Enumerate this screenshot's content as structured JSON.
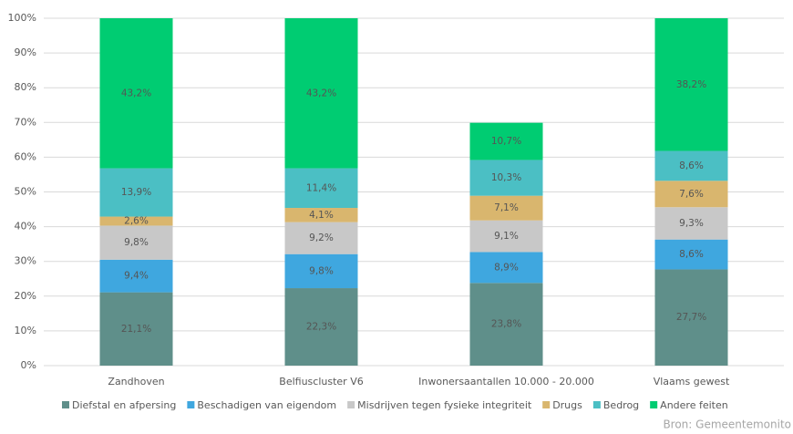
{
  "chart_data": {
    "type": "bar",
    "stacked": true,
    "categories": [
      "Zandhoven",
      "Belfiuscluster V6",
      "Inwonersaantallen 10.000 - 20.000",
      "Vlaams gewest"
    ],
    "series": [
      {
        "name": "Diefstal en afpersing",
        "color": "#5f8f8a",
        "values": [
          21.1,
          22.3,
          23.8,
          27.7
        ],
        "value_labels": [
          "21,1%",
          "22,3%",
          "23,8%",
          "27,7%"
        ]
      },
      {
        "name": "Beschadigen van eigendom",
        "color": "#3fa7df",
        "values": [
          9.4,
          9.8,
          8.9,
          8.6
        ],
        "value_labels": [
          "9,4%",
          "9,8%",
          "8,9%",
          "8,6%"
        ]
      },
      {
        "name": "Misdrijven tegen fysieke integriteit",
        "color": "#c8c8c8",
        "values": [
          9.8,
          9.2,
          9.1,
          9.3
        ],
        "value_labels": [
          "9,8%",
          "9,2%",
          "9,1%",
          "9,3%"
        ]
      },
      {
        "name": "Drugs",
        "color": "#d9b66e",
        "values": [
          2.6,
          4.1,
          7.1,
          7.6
        ],
        "value_labels": [
          "2,6%",
          "4,1%",
          "7,1%",
          "7,6%"
        ]
      },
      {
        "name": "Bedrog",
        "color": "#4bbfc4",
        "values": [
          13.9,
          11.4,
          10.3,
          8.6
        ],
        "value_labels": [
          "13,9%",
          "11,4%",
          "10,3%",
          "8,6%"
        ]
      },
      {
        "name": "Andere feiten",
        "color": "#00cc72",
        "values": [
          43.2,
          43.2,
          10.7,
          38.2
        ],
        "value_labels": [
          "43,2%",
          "43,2%",
          "10,7%",
          "38,2%"
        ]
      }
    ],
    "ylim": [
      0,
      100
    ],
    "yticks": [
      {
        "value": 0,
        "label": "0%"
      },
      {
        "value": 10,
        "label": "10%"
      },
      {
        "value": 20,
        "label": "20%"
      },
      {
        "value": 30,
        "label": "30%"
      },
      {
        "value": 40,
        "label": "40%"
      },
      {
        "value": 50,
        "label": "50%"
      },
      {
        "value": 60,
        "label": "60%"
      },
      {
        "value": 70,
        "label": "70%"
      },
      {
        "value": 80,
        "label": "80%"
      },
      {
        "value": 90,
        "label": "90%"
      },
      {
        "value": 100,
        "label": "100%"
      }
    ],
    "grid": true,
    "legend": "bottom",
    "source": "Bron: Gemeentemonito"
  }
}
